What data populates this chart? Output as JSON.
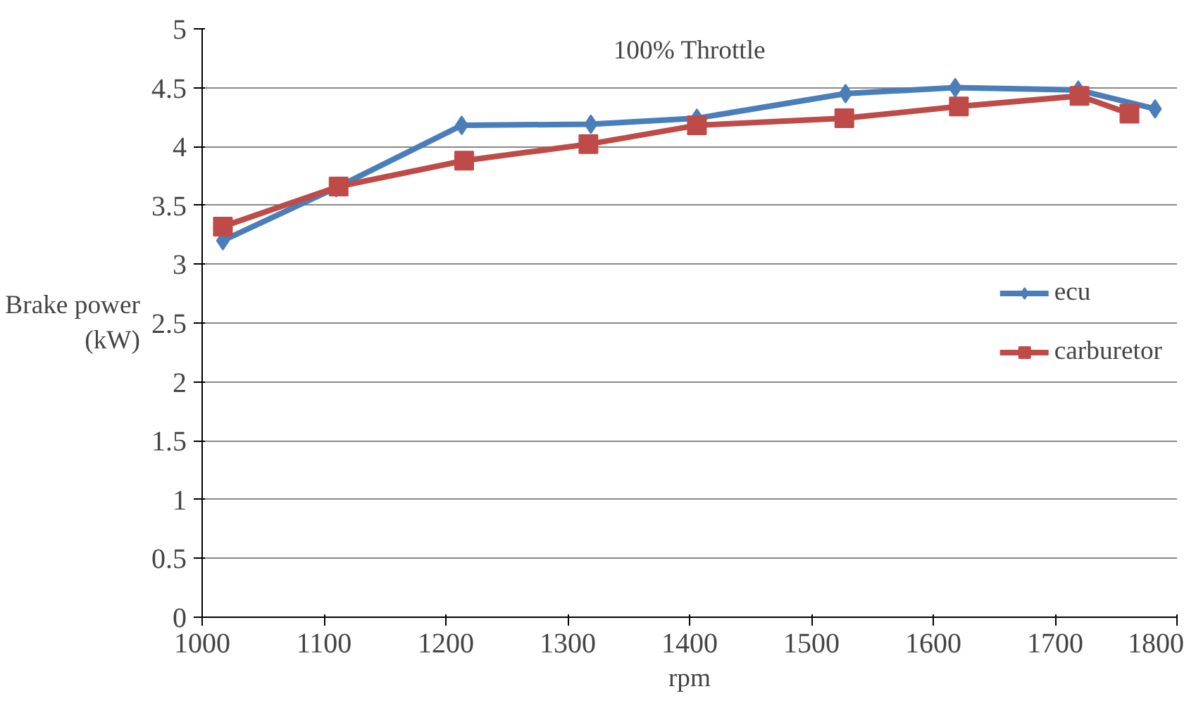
{
  "chart_data": {
    "type": "line",
    "title": "100% Throttle",
    "xlabel": "rpm",
    "ylabel": "Brake power\n(kW)",
    "xlim": [
      1000,
      1800
    ],
    "xticks": [
      1000,
      1100,
      1200,
      1300,
      1400,
      1500,
      1600,
      1700,
      1800
    ],
    "ylim": [
      0,
      5
    ],
    "yticks": [
      0,
      0.5,
      1,
      1.5,
      2,
      2.5,
      3,
      3.5,
      4,
      4.5,
      5
    ],
    "grid": "y",
    "legend": "right",
    "line_style": "solid",
    "series": [
      {
        "name": "ecu",
        "color": "#4a7ebb",
        "marker": "diamond",
        "x": [
          1017,
          1110,
          1213,
          1319,
          1406,
          1528,
          1618,
          1719,
          1782
        ],
        "values": [
          3.2,
          3.65,
          4.18,
          4.19,
          4.24,
          4.45,
          4.5,
          4.48,
          4.32
        ]
      },
      {
        "name": "carburetor",
        "color": "#be4b48",
        "marker": "square",
        "x": [
          1017,
          1112,
          1215,
          1317,
          1406,
          1527,
          1621,
          1720,
          1761
        ],
        "values": [
          3.32,
          3.66,
          3.88,
          4.02,
          4.18,
          4.24,
          4.34,
          4.43,
          4.28
        ]
      }
    ]
  }
}
